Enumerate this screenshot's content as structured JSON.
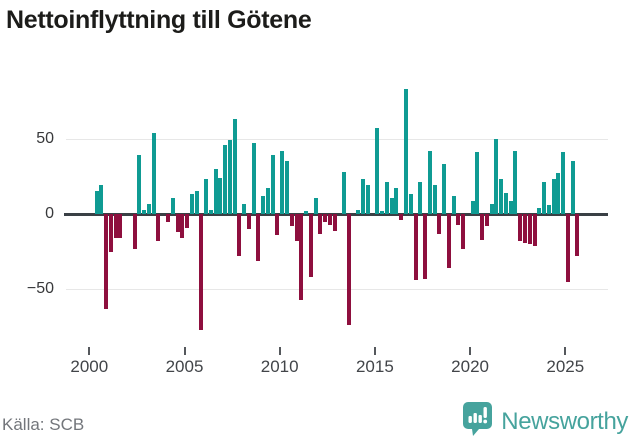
{
  "title": "Nettoinflyttning till Götene",
  "source_label": "Källa: SCB",
  "branding": {
    "name": "Newsworthy",
    "logo_color": "#46a39d"
  },
  "colors": {
    "positive_bar": "#0f9b93",
    "negative_bar": "#8e0f3e",
    "zero_line": "#3a4045",
    "gridline": "#e7e7e7"
  },
  "chart_data": {
    "type": "bar",
    "title": "Nettoinflyttning till Götene",
    "frequency": "quarterly",
    "start_period": "2000 Q1",
    "end_period": "2025 Q3",
    "x_tick_labels": [
      "2000",
      "2005",
      "2010",
      "2015",
      "2020",
      "2025"
    ],
    "y_ticks": [
      50,
      0,
      -50
    ],
    "y_tick_labels": [
      "50",
      "0",
      "−50"
    ],
    "ylim": [
      -90,
      100
    ],
    "grid": "horizontal",
    "legend": "none",
    "series": [
      {
        "name": "Nettoinflyttning",
        "values": [
          0,
          15,
          19,
          -63,
          -25,
          -16,
          -16,
          0,
          0,
          -23,
          39,
          3,
          7,
          54,
          -18,
          0,
          -5,
          11,
          -12,
          -16,
          -9,
          13,
          15,
          -77,
          23,
          3,
          30,
          24,
          46,
          49,
          63,
          -28,
          7,
          -10,
          47,
          -31,
          12,
          17,
          39,
          -14,
          42,
          35,
          -8,
          -18,
          -57,
          2,
          -42,
          11,
          -13,
          -5,
          -7,
          -11,
          0,
          28,
          -74,
          0,
          3,
          23,
          19,
          0,
          57,
          2,
          21,
          11,
          17,
          -4,
          83,
          13,
          -44,
          21,
          -43,
          42,
          19,
          -13,
          33,
          -36,
          12,
          -7,
          -23,
          0,
          9,
          41,
          -17,
          -8,
          7,
          50,
          23,
          14,
          9,
          42,
          -18,
          -19,
          -20,
          -21,
          4,
          21,
          6,
          23,
          27,
          41,
          -45,
          35,
          -28
        ]
      }
    ]
  }
}
